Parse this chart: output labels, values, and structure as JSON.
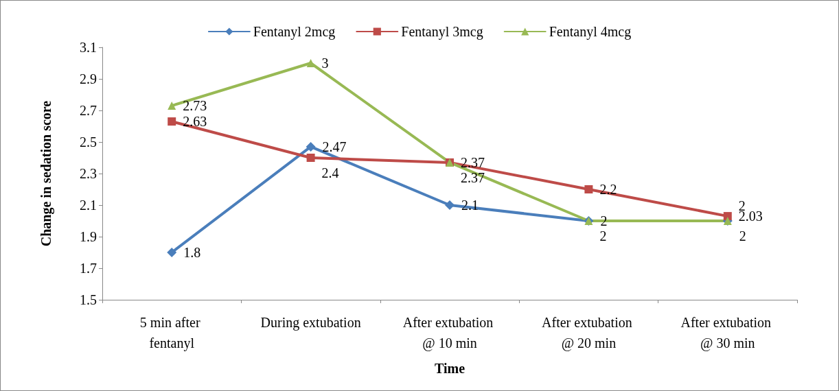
{
  "chart_data": {
    "type": "line",
    "xlabel": "Time",
    "ylabel": "Change in sedation score",
    "categories": [
      "5 min after fentanyl",
      "During extubation",
      "After extubation @ 10 min",
      "After extubation @ 20 min",
      "After extubation @ 30 min"
    ],
    "series": [
      {
        "name": "Fentanyl 2mcg",
        "color": "#4a7ebb",
        "marker": "diamond",
        "values": [
          1.8,
          2.47,
          2.1,
          2,
          2
        ]
      },
      {
        "name": "Fentanyl 3mcg",
        "color": "#be4b48",
        "marker": "square",
        "values": [
          2.63,
          2.4,
          2.37,
          2.2,
          2.03
        ]
      },
      {
        "name": "Fentanyl 4mcg",
        "color": "#98b954",
        "marker": "triangle",
        "values": [
          2.73,
          3,
          2.37,
          2,
          2
        ]
      }
    ],
    "ylim": [
      1.5,
      3.1
    ],
    "yticks": [
      1.5,
      1.7,
      1.9,
      2.1,
      2.3,
      2.5,
      2.7,
      2.9,
      3.1
    ],
    "grid": false,
    "legend": "top",
    "data_labels": true,
    "line_style": "solid"
  }
}
